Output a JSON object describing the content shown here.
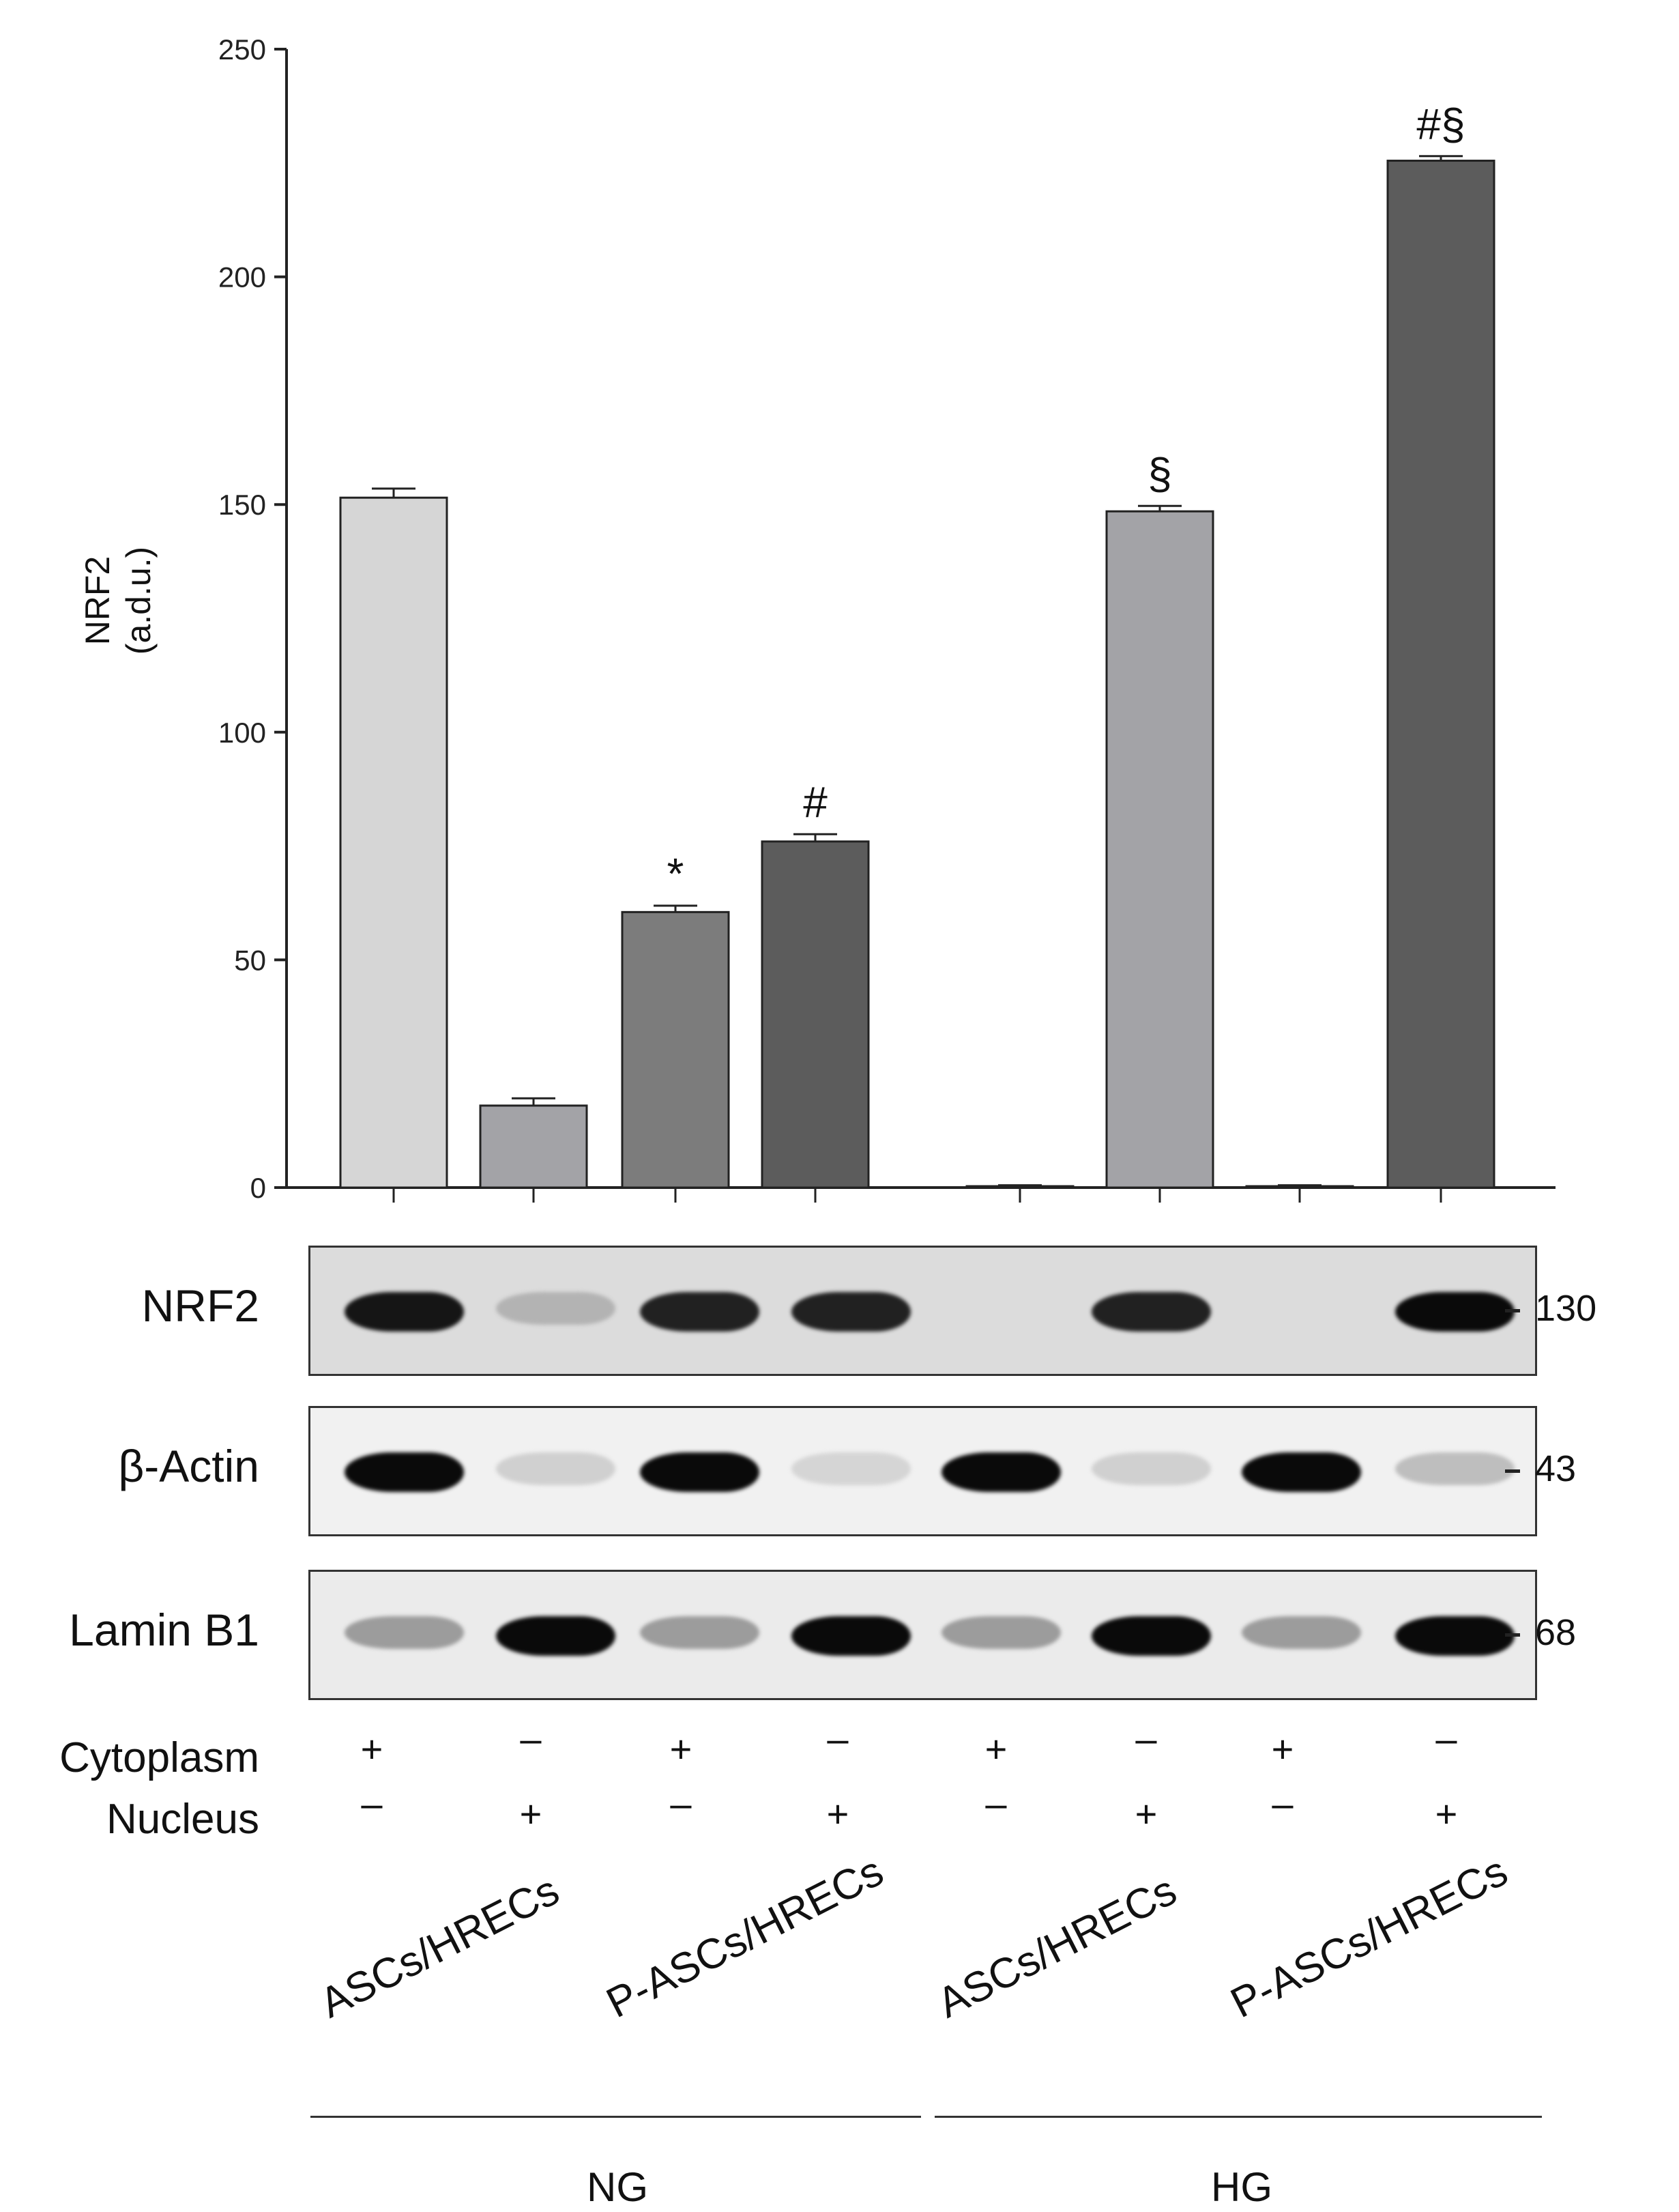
{
  "chart_data": {
    "type": "bar",
    "ylabel": [
      "NRF2",
      "(a.d.u.)"
    ],
    "ylim": [
      0,
      250
    ],
    "yticks": [
      0,
      50,
      100,
      150,
      200,
      250
    ],
    "values": [
      151.5,
      18,
      60.5,
      76,
      0.3,
      148.5,
      0.3,
      225.5
    ],
    "errors": [
      2,
      1.6,
      1.4,
      1.6,
      0.2,
      1.2,
      0.2,
      1.0
    ],
    "colors": [
      "#d6d6d6",
      "#a3a3a7",
      "#7c7c7c",
      "#5c5c5c",
      "#d6d6d6",
      "#a3a3a7",
      "#7c7c7c",
      "#5c5c5c"
    ],
    "annotations": [
      "",
      "",
      "*",
      "#",
      "",
      "§",
      "",
      "#§"
    ]
  },
  "blots": [
    {
      "name": "NRF2",
      "mw": "130",
      "intensity": [
        0.95,
        0.25,
        0.9,
        0.9,
        0,
        0.9,
        0,
        1.0
      ],
      "bg": "#dcdcdc"
    },
    {
      "name": "β-Actin",
      "mw": "43",
      "intensity": [
        1.0,
        0.12,
        1.0,
        0.1,
        1.0,
        0.12,
        1.0,
        0.2
      ],
      "bg": "#f1f1f1"
    },
    {
      "name": "Lamin B1",
      "mw": "68",
      "intensity": [
        0.35,
        1.0,
        0.35,
        1.0,
        0.35,
        1.0,
        0.35,
        1.0
      ],
      "bg": "#ebebeb"
    }
  ],
  "rows": {
    "cytoplasm": {
      "label": "Cytoplasm",
      "signs": [
        "+",
        "–",
        "+",
        "–",
        "+",
        "–",
        "+",
        "–"
      ]
    },
    "nucleus": {
      "label": "Nucleus",
      "signs": [
        "–",
        "+",
        "–",
        "+",
        "–",
        "+",
        "–",
        "+"
      ]
    }
  },
  "conditions": [
    "ASCs/HRECs",
    "P-ASCs/HRECs",
    "ASCs/HRECs",
    "P-ASCs/HRECs"
  ],
  "groups": [
    "NG",
    "HG"
  ]
}
